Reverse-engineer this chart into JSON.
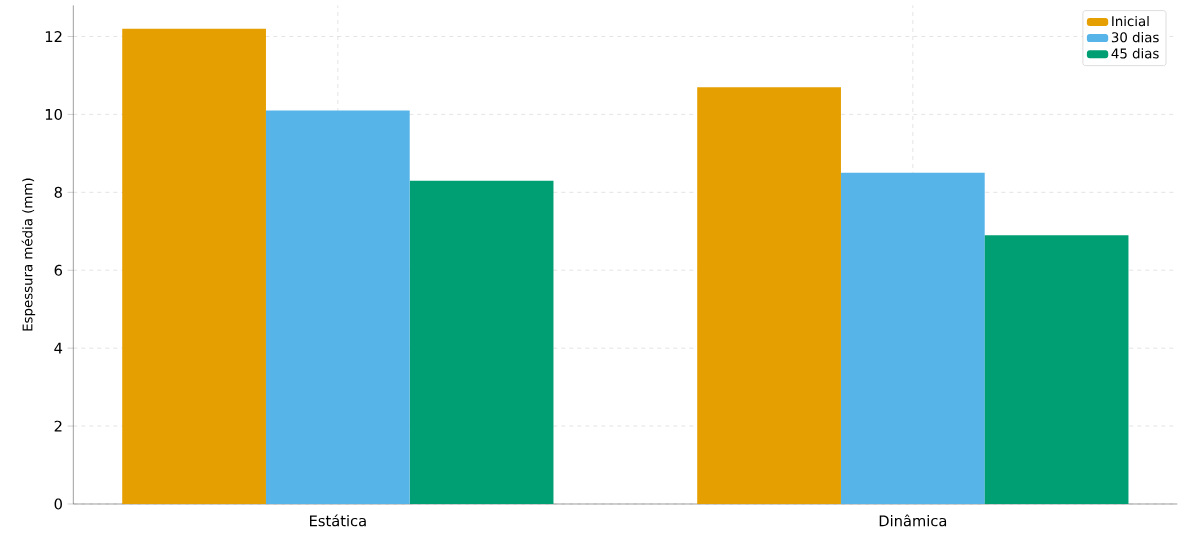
{
  "chart_data": {
    "type": "bar",
    "ylabel": "Espessura média (mm)",
    "categories": [
      "Estática",
      "Dinâmica"
    ],
    "series": [
      {
        "name": "Inicial",
        "color": "#e69f00",
        "values": [
          12.2,
          10.7
        ]
      },
      {
        "name": "30 dias",
        "color": "#56b4e9",
        "values": [
          10.1,
          8.5
        ]
      },
      {
        "name": "45 dias",
        "color": "#009e73",
        "values": [
          8.3,
          6.9
        ]
      }
    ],
    "ylim": [
      0,
      12.8
    ],
    "yticks": [
      0,
      2,
      4,
      6,
      8,
      10,
      12
    ],
    "grid": true,
    "legend": "top right"
  }
}
